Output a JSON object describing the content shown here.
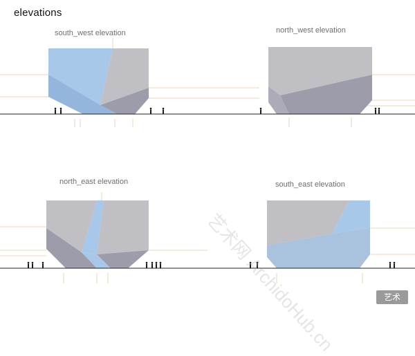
{
  "page": {
    "title": "elevations"
  },
  "elevations": [
    {
      "id": "south_west",
      "label": "south_west elevation"
    },
    {
      "id": "north_west",
      "label": "north_west elevation"
    },
    {
      "id": "north_east",
      "label": "north_east elevation"
    },
    {
      "id": "south_east",
      "label": "south_east elevation"
    }
  ],
  "colors": {
    "glass": "#a8c8ea",
    "glass_dark": "#8fb2d9",
    "wall_light": "#c0bfc3",
    "wall_dark": "#9d9cab",
    "ground": "#222222",
    "guide": "#e2c9a8"
  },
  "watermark": {
    "text": "艺术网 ArchidoHub.cn",
    "logo": "艺术"
  }
}
